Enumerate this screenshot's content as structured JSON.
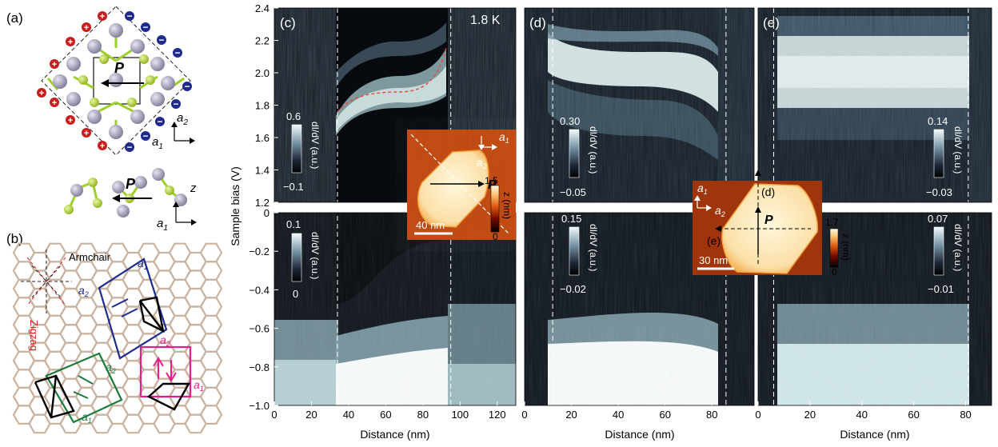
{
  "panel_labels": {
    "a": "(a)",
    "b": "(b)",
    "c": "(c)",
    "d": "(d)",
    "e": "(e)"
  },
  "structure": {
    "polarization": "P",
    "axis_a1": "a",
    "axis_a1_sub": "1",
    "axis_a2": "a",
    "axis_a2_sub": "2",
    "axis_z": "z",
    "plus_sign": "+",
    "minus_sign": "−"
  },
  "lattice": {
    "armchair": "Armchair",
    "zigzag": "Zigzag",
    "a1": "a",
    "a1_sub": "1",
    "a2": "a",
    "a2_sub": "2"
  },
  "temperature": "1.8 K",
  "ylabel": "Sample bias (V)",
  "xlabel": "Distance (nm)",
  "colorbars": {
    "c_top": {
      "max": "0.6",
      "min": "−0.1",
      "label": "dI/dV (a.u.)"
    },
    "c_bot": {
      "max": "0.1",
      "min": "0",
      "label": "dI/dV (a.u.)"
    },
    "d_top": {
      "max": "0.30",
      "min": "−0.05",
      "label": "dI/dV (a.u.)"
    },
    "d_bot": {
      "max": "0.15",
      "min": "−0.02",
      "label": "dI/dV (a.u.)"
    },
    "e_top": {
      "max": "0.14",
      "min": "−0.03",
      "label": "dI/dV (a.u.)"
    },
    "e_bot": {
      "max": "0.07",
      "min": "−0.01",
      "label": "dI/dV (a.u.)"
    }
  },
  "inset_c": {
    "scale": "40 nm",
    "zmax": "1.5",
    "zmin": "0",
    "zlabel": "z (nm)",
    "P": "P",
    "a1": "a",
    "a1_sub": "1",
    "a2": "a",
    "a2_sub": "2"
  },
  "inset_de": {
    "scale": "30 nm",
    "zmax": "1.7",
    "zmin": "0",
    "zlabel": "z (nm)",
    "P": "P",
    "label_d": "(d)",
    "label_e": "(e)",
    "a1": "a",
    "a1_sub": "1",
    "a2": "a",
    "a2_sub": "2"
  },
  "chart_data": [
    {
      "type": "heatmap",
      "panel": "(c)",
      "xlabel": "Distance (nm)",
      "ylabel": "Sample bias (V)",
      "xlim": [
        0,
        130
      ],
      "x_ticks": [
        0,
        20,
        40,
        60,
        80,
        100,
        120
      ],
      "ylim_top": [
        1.2,
        2.4
      ],
      "y_ticks_top": [
        1.2,
        1.4,
        1.6,
        1.8,
        2.0,
        2.2,
        2.4
      ],
      "ylim_bottom": [
        -1.0,
        0
      ],
      "y_ticks_bottom": [
        -1.0,
        -0.8,
        -0.6,
        -0.4,
        -0.2,
        0
      ],
      "island_edges_nm": [
        34,
        95
      ]
    },
    {
      "type": "heatmap",
      "panel": "(d)",
      "xlabel": "Distance (nm)",
      "xlim": [
        0,
        98
      ],
      "x_ticks": [
        0,
        20,
        40,
        60,
        80
      ],
      "island_edges_nm": [
        12,
        86
      ]
    },
    {
      "type": "heatmap",
      "panel": "(e)",
      "xlabel": "Distance (nm)",
      "xlim": [
        0,
        90
      ],
      "x_ticks": [
        0,
        20,
        40,
        60,
        80
      ],
      "island_edges_nm": [
        6,
        81
      ]
    }
  ]
}
